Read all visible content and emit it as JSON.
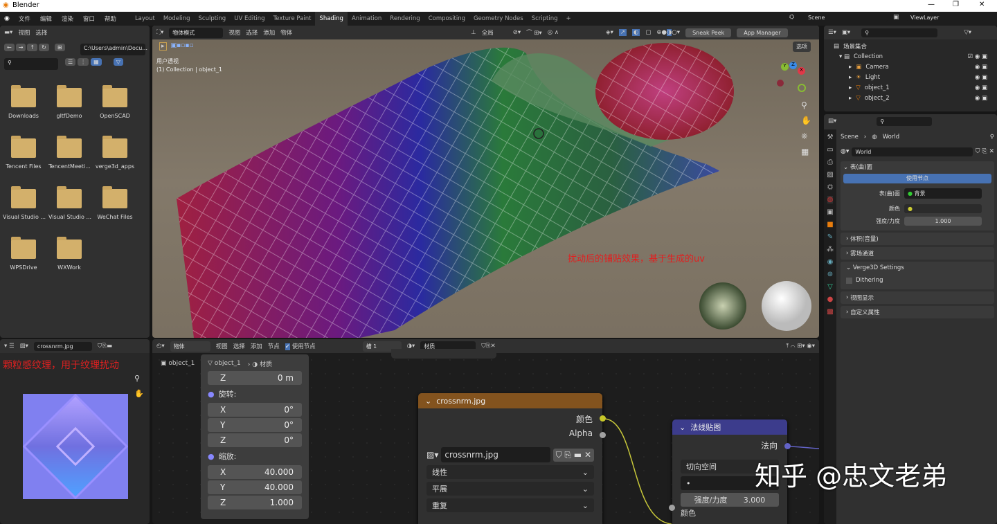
{
  "window": {
    "title": "Blender"
  },
  "menu": [
    "文件",
    "编辑",
    "渲染",
    "窗口",
    "帮助"
  ],
  "workspaces": [
    "Layout",
    "Modeling",
    "Sculpting",
    "UV Editing",
    "Texture Paint",
    "Shading",
    "Animation",
    "Rendering",
    "Compositing",
    "Geometry Nodes",
    "Scripting",
    "+"
  ],
  "active_workspace": "Shading",
  "scene": {
    "name": "Scene",
    "view_layer": "ViewLayer"
  },
  "file_browser": {
    "menu": [
      "视图",
      "选择"
    ],
    "path": "C:\\Users\\admin\\Docu...",
    "search_placeholder": "",
    "folders": [
      "Downloads",
      "gltfDemo",
      "OpenSCAD",
      "Tencent Files",
      "TencentMeeti...",
      "verge3d_apps",
      "Visual Studio ...",
      "Visual Studio ...",
      "WeChat Files",
      "WPSDrive",
      "WXWork"
    ]
  },
  "viewport": {
    "mode": "物体模式",
    "menu": [
      "视图",
      "选择",
      "添加",
      "物体"
    ],
    "transform": "全局",
    "sneak_peek": "Sneak Peek",
    "app_manager": "App Manager",
    "options": "选项",
    "view_name": "用户透视",
    "view_info": "(1) Collection | object_1",
    "annotation": "扰动后的铺贴效果，基于生成的uv",
    "annotation_color": "#e02020"
  },
  "outliner": {
    "root": "场景集合",
    "collection": "Collection",
    "items": [
      "Camera",
      "Light",
      "object_1",
      "object_2"
    ]
  },
  "properties": {
    "breadcrumb": [
      "Scene",
      "World"
    ],
    "world_name": "World",
    "surface_panel": "表(曲)面",
    "use_nodes": "使用节点",
    "surface_label": "表(曲)面",
    "surface_value": "背景",
    "color_label": "颜色",
    "strength_label": "强度/力度",
    "strength_value": "1.000",
    "panels": [
      "体积(音量)",
      "雾场通道",
      "Verge3D Settings"
    ],
    "dithering": "Dithering",
    "panels2": [
      "视图显示",
      "自定义属性"
    ]
  },
  "image_editor": {
    "image": "crossnrm.jpg",
    "annotation": "颗粒感纹理，用于纹理扰动"
  },
  "node_editor": {
    "type": "物体",
    "menu": [
      "视图",
      "选择",
      "添加",
      "节点"
    ],
    "use_nodes": "使用节点",
    "slot": "槽 1",
    "material": "材质",
    "breadcrumb": [
      "object_1",
      "object_1",
      "材质"
    ],
    "transform": {
      "z_loc": "0 m",
      "rotation_label": "旋转:",
      "rotation": [
        [
          "X",
          "0°"
        ],
        [
          "Y",
          "0°"
        ],
        [
          "Z",
          "0°"
        ]
      ],
      "scale_label": "缩放:",
      "scale": [
        [
          "X",
          "40.000"
        ],
        [
          "Y",
          "40.000"
        ],
        [
          "Z",
          "1.000"
        ]
      ]
    },
    "image_node": {
      "title": "crossnrm.jpg",
      "out_color": "颜色",
      "out_alpha": "Alpha",
      "image": "crossnrm.jpg",
      "interpolation": "线性",
      "projection": "平展",
      "extension": "重复",
      "header_color": "#83531e"
    },
    "normal_node": {
      "title": "法线贴图",
      "out_normal": "法向",
      "space": "切向空间",
      "uvmap": "•",
      "strength_label": "强度/力度",
      "strength_value": "3.000",
      "in_color": "颜色",
      "header_color": "#3c3c8c"
    }
  },
  "watermark": "知乎 @忠文老弟"
}
